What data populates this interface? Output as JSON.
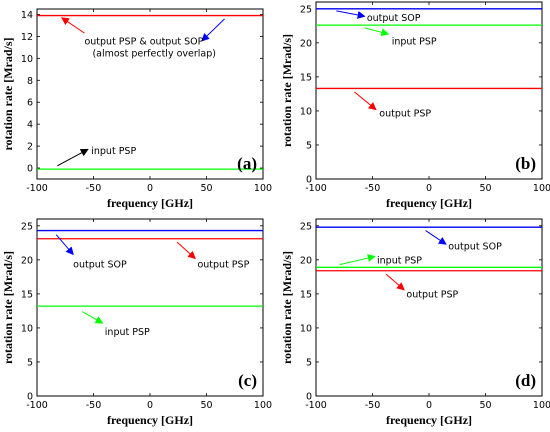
{
  "chart_data": [
    {
      "type": "line",
      "panel_label": "(a)",
      "xlabel": "frequency [GHz]",
      "ylabel": "rotation rate [Mrad/s]",
      "xlim": [
        -100,
        100
      ],
      "ylim": [
        -1,
        14.5
      ],
      "xticks": [
        -100,
        -50,
        0,
        50,
        100
      ],
      "yticks": [
        0,
        2,
        4,
        6,
        8,
        10,
        12,
        14
      ],
      "series": [
        {
          "color": "#ff0000",
          "x": [
            -100,
            100
          ],
          "y": [
            13.9,
            13.9
          ]
        },
        {
          "color": "#00ff00",
          "x": [
            -100,
            100
          ],
          "y": [
            -0.1,
            -0.1
          ]
        }
      ],
      "annotations": [
        {
          "lines": [
            "output PSP & output SOP",
            "(almost perfectly overlap)"
          ],
          "text_x": -58,
          "text_y": 11.6,
          "arrows": [
            {
              "color": "#ff0000",
              "from": [
                -58,
                12.3
              ],
              "to": [
                -78,
                13.7
              ]
            },
            {
              "color": "#0000ff",
              "from": [
                66,
                13.6
              ],
              "to": [
                46,
                11.6
              ]
            }
          ]
        },
        {
          "lines": [
            "input PSP"
          ],
          "text_x": -52,
          "text_y": 1.6,
          "arrows": [
            {
              "color": "#000000",
              "from": [
                -82,
                0.2
              ],
              "to": [
                -55,
                1.7
              ]
            }
          ]
        }
      ]
    },
    {
      "type": "line",
      "panel_label": "(b)",
      "xlabel": "frequency [GHz]",
      "ylabel": "rotation rate [Mrad/s]",
      "xlim": [
        -100,
        100
      ],
      "ylim": [
        0,
        26
      ],
      "xticks": [
        -100,
        -50,
        0,
        50,
        100
      ],
      "yticks": [
        0,
        5,
        10,
        15,
        20,
        25
      ],
      "series": [
        {
          "color": "#0000ff",
          "x": [
            -100,
            100
          ],
          "y": [
            25.0,
            25.0
          ]
        },
        {
          "color": "#00ff00",
          "x": [
            -100,
            100
          ],
          "y": [
            22.6,
            22.6
          ]
        },
        {
          "color": "#ff0000",
          "x": [
            -100,
            100
          ],
          "y": [
            13.3,
            13.3
          ]
        }
      ],
      "annotations": [
        {
          "lines": [
            "output SOP"
          ],
          "text_x": -55,
          "text_y": 23.7,
          "arrows": [
            {
              "color": "#0000ff",
              "from": [
                -82,
                24.7
              ],
              "to": [
                -57,
                23.9
              ]
            }
          ]
        },
        {
          "lines": [
            "input PSP"
          ],
          "text_x": -33,
          "text_y": 20.3,
          "arrows": [
            {
              "color": "#00ff00",
              "from": [
                -57,
                22.2
              ],
              "to": [
                -36,
                21.3
              ]
            }
          ]
        },
        {
          "lines": [
            "output PSP"
          ],
          "text_x": -44,
          "text_y": 9.7,
          "arrows": [
            {
              "color": "#ff0000",
              "from": [
                -66,
                12.8
              ],
              "to": [
                -47,
                10.2
              ]
            }
          ]
        }
      ]
    },
    {
      "type": "line",
      "panel_label": "(c)",
      "xlabel": "frequency [GHz]",
      "ylabel": "rotation rate [Mrad/s]",
      "xlim": [
        -100,
        100
      ],
      "ylim": [
        0,
        26
      ],
      "xticks": [
        -100,
        -50,
        0,
        50,
        100
      ],
      "yticks": [
        0,
        5,
        10,
        15,
        20,
        25
      ],
      "series": [
        {
          "color": "#0000ff",
          "x": [
            -100,
            100
          ],
          "y": [
            24.3,
            24.3
          ]
        },
        {
          "color": "#ff0000",
          "x": [
            -100,
            100
          ],
          "y": [
            23.1,
            23.1
          ]
        },
        {
          "color": "#00ff00",
          "x": [
            -100,
            100
          ],
          "y": [
            13.2,
            13.2
          ]
        }
      ],
      "annotations": [
        {
          "lines": [
            "output SOP"
          ],
          "text_x": -68,
          "text_y": 19.4,
          "arrows": [
            {
              "color": "#0000ff",
              "from": [
                -83,
                23.7
              ],
              "to": [
                -68,
                20.8
              ]
            }
          ]
        },
        {
          "lines": [
            "output PSP"
          ],
          "text_x": 42,
          "text_y": 19.4,
          "arrows": [
            {
              "color": "#ff0000",
              "from": [
                24,
                22.6
              ],
              "to": [
                40,
                20.2
              ]
            }
          ]
        },
        {
          "lines": [
            "input PSP"
          ],
          "text_x": -40,
          "text_y": 9.5,
          "arrows": [
            {
              "color": "#00ff00",
              "from": [
                -60,
                12.4
              ],
              "to": [
                -42,
                10.7
              ]
            }
          ]
        }
      ]
    },
    {
      "type": "line",
      "panel_label": "(d)",
      "xlabel": "frequency [GHz]",
      "ylabel": "rotation rate [Mrad/s]",
      "xlim": [
        -100,
        100
      ],
      "ylim": [
        0,
        26
      ],
      "xticks": [
        -100,
        -50,
        0,
        50,
        100
      ],
      "yticks": [
        0,
        5,
        10,
        15,
        20,
        25
      ],
      "series": [
        {
          "color": "#0000ff",
          "x": [
            -100,
            100
          ],
          "y": [
            24.8,
            24.8
          ]
        },
        {
          "color": "#00ff00",
          "x": [
            -100,
            100
          ],
          "y": [
            18.9,
            18.9
          ]
        },
        {
          "color": "#ff0000",
          "x": [
            -100,
            100
          ],
          "y": [
            18.4,
            18.4
          ]
        }
      ],
      "annotations": [
        {
          "lines": [
            "output SOP"
          ],
          "text_x": 17,
          "text_y": 22.0,
          "arrows": [
            {
              "color": "#0000ff",
              "from": [
                -3,
                24.3
              ],
              "to": [
                15,
                22.3
              ]
            }
          ]
        },
        {
          "lines": [
            "input PSP"
          ],
          "text_x": -46,
          "text_y": 20.0,
          "arrows": [
            {
              "color": "#00ff00",
              "from": [
                -79,
                19.3
              ],
              "to": [
                -48,
                20.5
              ]
            }
          ]
        },
        {
          "lines": [
            "output PSP"
          ],
          "text_x": -20,
          "text_y": 15.0,
          "arrows": [
            {
              "color": "#ff0000",
              "from": [
                -38,
                17.9
              ],
              "to": [
                -22,
                15.6
              ]
            }
          ]
        }
      ]
    }
  ]
}
